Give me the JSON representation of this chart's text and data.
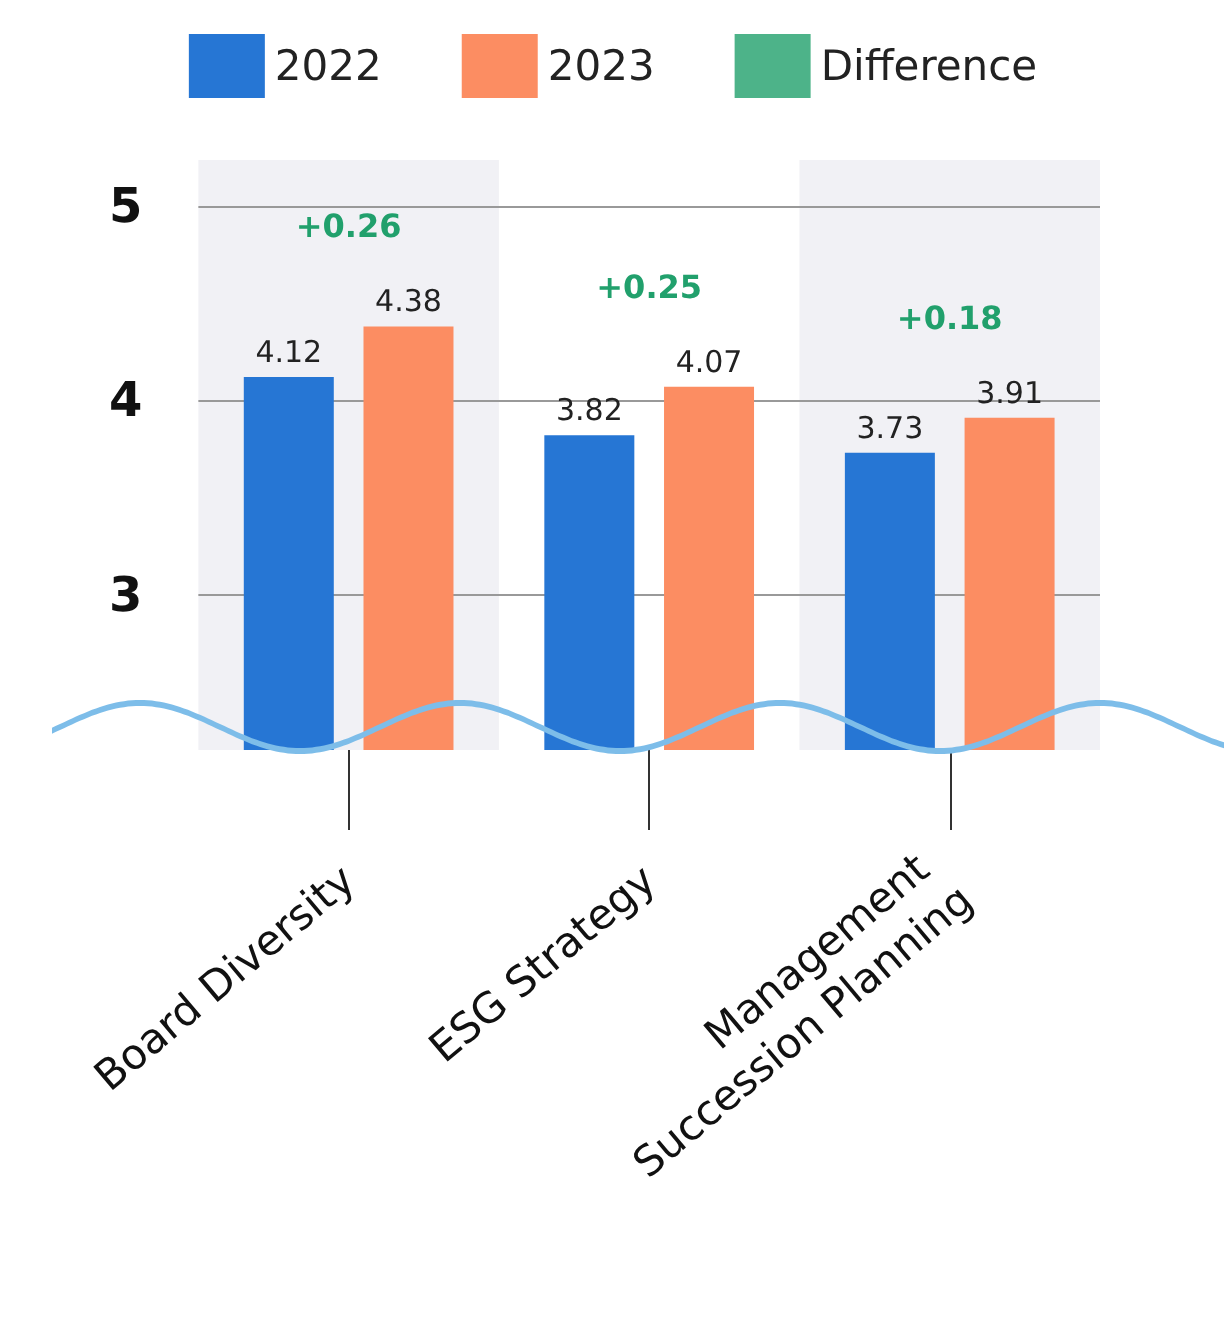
{
  "chart_data": {
    "type": "bar",
    "categories": [
      "Board Diversity",
      "ESG Strategy",
      "Management Succession Planning"
    ],
    "series": [
      {
        "name": "2022",
        "color": "#2676d4",
        "values": [
          4.12,
          3.82,
          3.73
        ]
      },
      {
        "name": "2023",
        "color": "#fc8d62",
        "values": [
          4.38,
          4.07,
          3.91
        ]
      },
      {
        "name": "Difference",
        "type": "scatter",
        "color": "#21a06c",
        "values": [
          null,
          null,
          null
        ]
      }
    ],
    "annotations": [
      "+0.26",
      "+0.25",
      "+0.18"
    ],
    "bands": [
      {
        "axis": "x",
        "from": "Board Diversity",
        "to": "Board Diversity",
        "color": "#f1f1f5"
      },
      {
        "axis": "x",
        "from": "Management Succession Planning",
        "to": "Management Succession Planning",
        "color": "#f1f1f5"
      }
    ],
    "ylim": [
      2.2,
      5
    ],
    "yticks": [
      3,
      4,
      5
    ],
    "grid": "y",
    "legend": "top",
    "data_labels": true
  }
}
